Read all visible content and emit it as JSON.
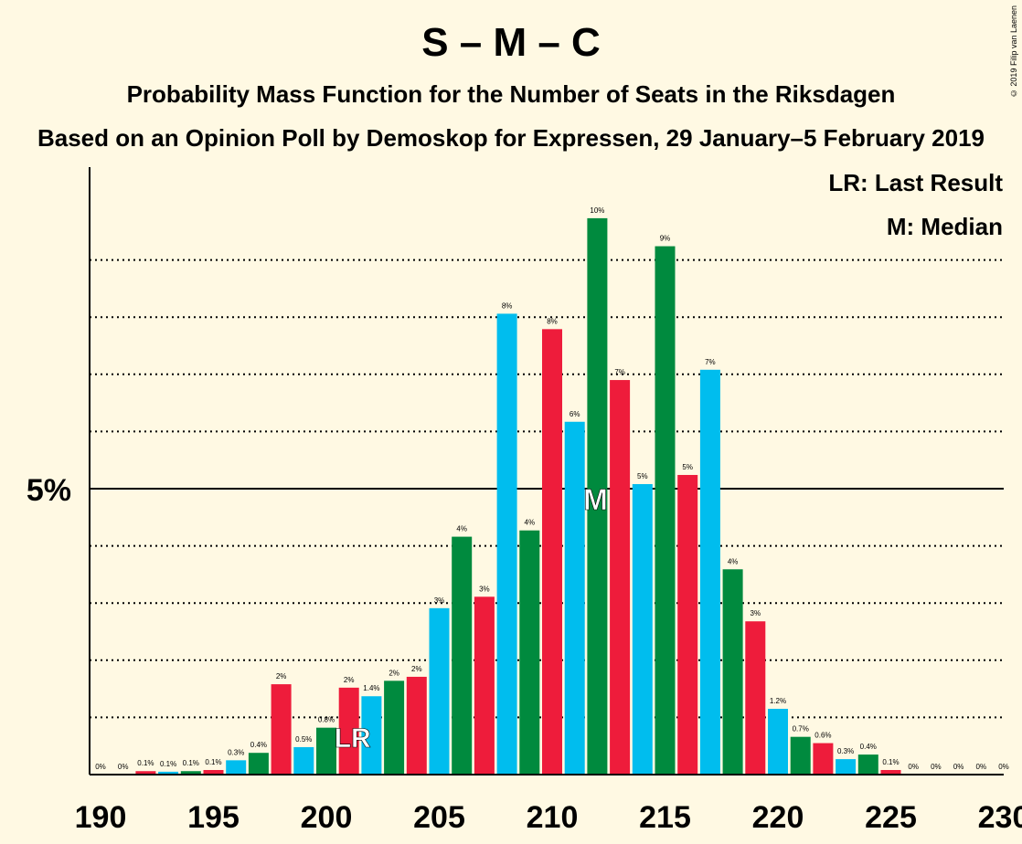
{
  "copyright": "© 2019 Filip van Laenen",
  "chart_data": {
    "type": "bar",
    "title": "S – M – C",
    "subtitle": "Probability Mass Function for the Number of Seats in the Riksdagen",
    "subtitle2": "Based on an Opinion Poll by Demoskop for Expressen, 29 January–5 February 2019",
    "legend": [
      "LR: Last Result",
      "M: Median"
    ],
    "legend_position": "top-right",
    "y_tick_label": "5%",
    "y_tick_value": 5,
    "ylim": [
      0,
      10.5
    ],
    "x_range": [
      190,
      230
    ],
    "x_tick_labels": [
      "190",
      "195",
      "200",
      "205",
      "210",
      "215",
      "220",
      "225",
      "230"
    ],
    "last_result_seat": 201,
    "last_result_label": "LR",
    "median_seat": 212,
    "median_label": "M",
    "colors": {
      "blue": "#00bdee",
      "green": "#008a3e",
      "red": "#ee1c3b",
      "background": "#fff9e3"
    },
    "bars": [
      {
        "seat": 190,
        "value": 0,
        "label": "0%",
        "color": "blue"
      },
      {
        "seat": 191,
        "value": 0,
        "label": "0%",
        "color": "green"
      },
      {
        "seat": 192,
        "value": 0.06,
        "label": "0.1%",
        "color": "red"
      },
      {
        "seat": 193,
        "value": 0.05,
        "label": "0.1%",
        "color": "blue"
      },
      {
        "seat": 194,
        "value": 0.06,
        "label": "0.1%",
        "color": "green"
      },
      {
        "seat": 195,
        "value": 0.08,
        "label": "0.1%",
        "color": "red"
      },
      {
        "seat": 196,
        "value": 0.25,
        "label": "0.3%",
        "color": "blue"
      },
      {
        "seat": 197,
        "value": 0.38,
        "label": "0.4%",
        "color": "green"
      },
      {
        "seat": 198,
        "value": 1.58,
        "label": "2%",
        "color": "red"
      },
      {
        "seat": 199,
        "value": 0.48,
        "label": "0.5%",
        "color": "blue"
      },
      {
        "seat": 200,
        "value": 0.82,
        "label": "0.8%",
        "color": "green"
      },
      {
        "seat": 201,
        "value": 1.52,
        "label": "2%",
        "color": "red"
      },
      {
        "seat": 202,
        "value": 1.37,
        "label": "1.4%",
        "color": "blue"
      },
      {
        "seat": 203,
        "value": 1.64,
        "label": "2%",
        "color": "green"
      },
      {
        "seat": 204,
        "value": 1.71,
        "label": "2%",
        "color": "red"
      },
      {
        "seat": 205,
        "value": 2.91,
        "label": "3%",
        "color": "blue"
      },
      {
        "seat": 206,
        "value": 4.16,
        "label": "4%",
        "color": "green"
      },
      {
        "seat": 207,
        "value": 3.11,
        "label": "3%",
        "color": "red"
      },
      {
        "seat": 208,
        "value": 8.06,
        "label": "8%",
        "color": "blue"
      },
      {
        "seat": 209,
        "value": 4.27,
        "label": "4%",
        "color": "green"
      },
      {
        "seat": 210,
        "value": 7.79,
        "label": "8%",
        "color": "red"
      },
      {
        "seat": 211,
        "value": 6.17,
        "label": "6%",
        "color": "blue"
      },
      {
        "seat": 212,
        "value": 9.73,
        "label": "10%",
        "color": "green"
      },
      {
        "seat": 213,
        "value": 6.9,
        "label": "7%",
        "color": "red"
      },
      {
        "seat": 214,
        "value": 5.08,
        "label": "5%",
        "color": "blue"
      },
      {
        "seat": 215,
        "value": 9.24,
        "label": "9%",
        "color": "green"
      },
      {
        "seat": 216,
        "value": 5.24,
        "label": "5%",
        "color": "red"
      },
      {
        "seat": 217,
        "value": 7.08,
        "label": "7%",
        "color": "blue"
      },
      {
        "seat": 218,
        "value": 3.59,
        "label": "4%",
        "color": "green"
      },
      {
        "seat": 219,
        "value": 2.68,
        "label": "3%",
        "color": "red"
      },
      {
        "seat": 220,
        "value": 1.15,
        "label": "1.2%",
        "color": "blue"
      },
      {
        "seat": 221,
        "value": 0.66,
        "label": "0.7%",
        "color": "green"
      },
      {
        "seat": 222,
        "value": 0.55,
        "label": "0.6%",
        "color": "red"
      },
      {
        "seat": 223,
        "value": 0.27,
        "label": "0.3%",
        "color": "blue"
      },
      {
        "seat": 224,
        "value": 0.35,
        "label": "0.4%",
        "color": "green"
      },
      {
        "seat": 225,
        "value": 0.08,
        "label": "0.1%",
        "color": "red"
      },
      {
        "seat": 226,
        "value": 0,
        "label": "0%",
        "color": "blue"
      },
      {
        "seat": 227,
        "value": 0,
        "label": "0%",
        "color": "green"
      },
      {
        "seat": 228,
        "value": 0,
        "label": "0%",
        "color": "red"
      },
      {
        "seat": 229,
        "value": 0,
        "label": "0%",
        "color": "blue"
      },
      {
        "seat": 230,
        "value": 0,
        "label": "0%",
        "color": "green"
      }
    ]
  }
}
